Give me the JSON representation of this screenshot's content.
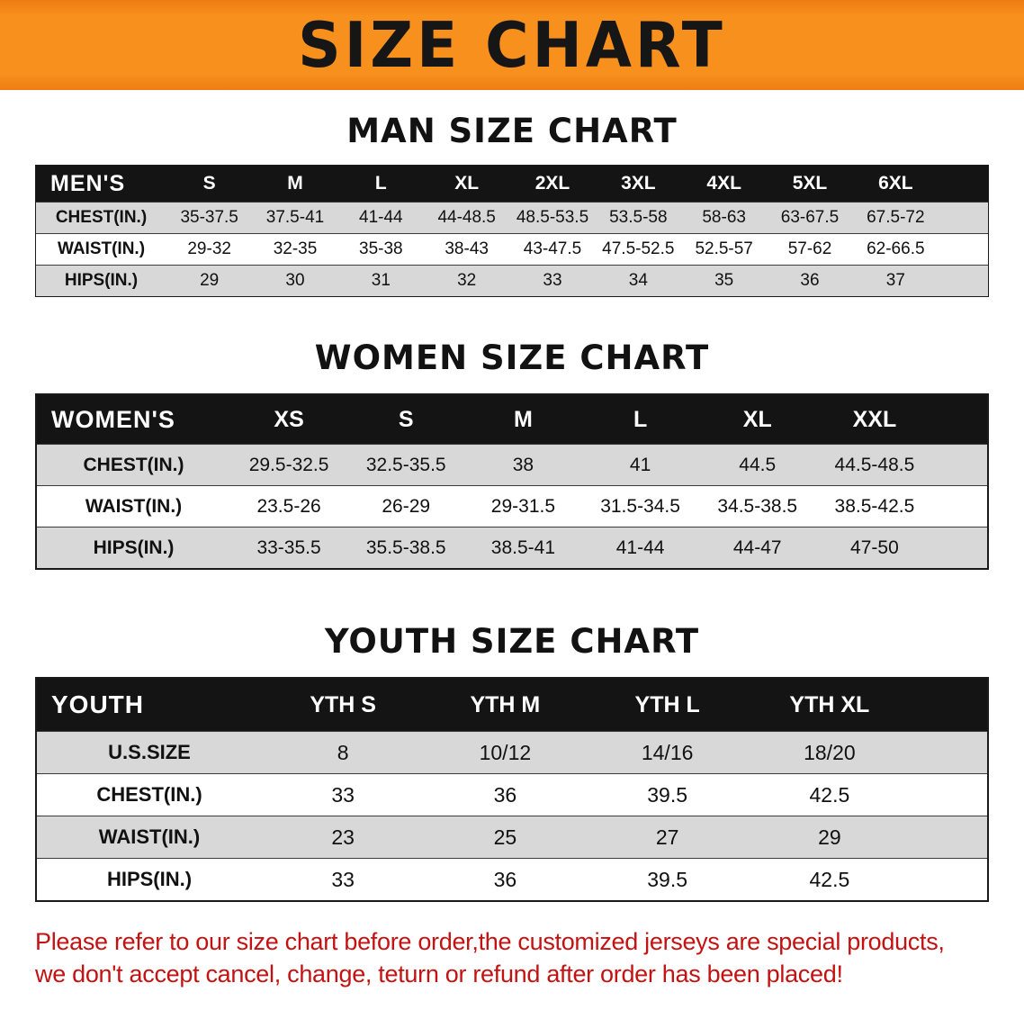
{
  "banner": {
    "title": "SIZE CHART"
  },
  "colors": {
    "banner_orange": "#f8901e",
    "table_header_black": "#141414",
    "row_gray": "#d8d8d8",
    "note_red": "#c41212"
  },
  "sections": {
    "men": {
      "heading": "MAN SIZE CHART",
      "header": [
        "MEN'S",
        "S",
        "M",
        "L",
        "XL",
        "2XL",
        "3XL",
        "4XL",
        "5XL",
        "6XL"
      ],
      "rows": [
        {
          "label": "CHEST(IN.)",
          "values": [
            "35-37.5",
            "37.5-41",
            "41-44",
            "44-48.5",
            "48.5-53.5",
            "53.5-58",
            "58-63",
            "63-67.5",
            "67.5-72"
          ]
        },
        {
          "label": "WAIST(IN.)",
          "values": [
            "29-32",
            "32-35",
            "35-38",
            "38-43",
            "43-47.5",
            "47.5-52.5",
            "52.5-57",
            "57-62",
            "62-66.5"
          ]
        },
        {
          "label": "HIPS(IN.)",
          "values": [
            "29",
            "30",
            "31",
            "32",
            "33",
            "34",
            "35",
            "36",
            "37"
          ]
        }
      ]
    },
    "women": {
      "heading": "WOMEN SIZE CHART",
      "header": [
        "WOMEN'S",
        "XS",
        "S",
        "M",
        "L",
        "XL",
        "XXL"
      ],
      "rows": [
        {
          "label": "CHEST(IN.)",
          "values": [
            "29.5-32.5",
            "32.5-35.5",
            "38",
            "41",
            "44.5",
            "44.5-48.5"
          ]
        },
        {
          "label": "WAIST(IN.)",
          "values": [
            "23.5-26",
            "26-29",
            "29-31.5",
            "31.5-34.5",
            "34.5-38.5",
            "38.5-42.5"
          ]
        },
        {
          "label": "HIPS(IN.)",
          "values": [
            "33-35.5",
            "35.5-38.5",
            "38.5-41",
            "41-44",
            "44-47",
            "47-50"
          ]
        }
      ]
    },
    "youth": {
      "heading": "YOUTH SIZE CHART",
      "header": [
        "YOUTH",
        "YTH S",
        "YTH M",
        "YTH L",
        "YTH XL"
      ],
      "rows": [
        {
          "label": "U.S.SIZE",
          "values": [
            "8",
            "10/12",
            "14/16",
            "18/20"
          ]
        },
        {
          "label": "CHEST(IN.)",
          "values": [
            "33",
            "36",
            "39.5",
            "42.5"
          ]
        },
        {
          "label": "WAIST(IN.)",
          "values": [
            "23",
            "25",
            "27",
            "29"
          ]
        },
        {
          "label": "HIPS(IN.)",
          "values": [
            "33",
            "36",
            "39.5",
            "42.5"
          ]
        }
      ]
    }
  },
  "footer_note": {
    "line1": "Please refer to our size chart before order,the customized jerseys are special products,",
    "line2": "we don't accept cancel, change, teturn or refund after order has been placed!"
  }
}
